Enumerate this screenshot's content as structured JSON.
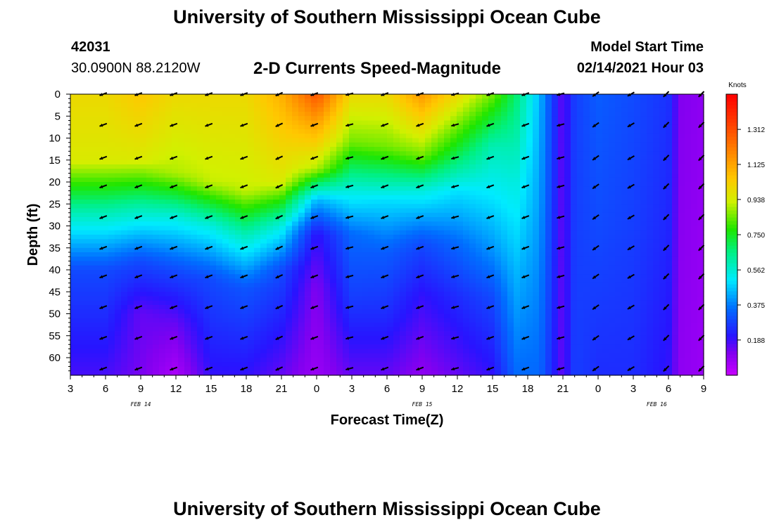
{
  "header": {
    "title": "University of Southern Mississippi Ocean Cube",
    "station_id": "42031",
    "location": "30.0900N 88.2120W",
    "plot_title": "2-D Currents Speed-Magnitude",
    "model_label": "Model Start Time",
    "model_time": "02/14/2021 Hour 03"
  },
  "footer": {
    "title": "University of Southern Mississippi Ocean Cube"
  },
  "chart_data": {
    "type": "heatmap",
    "title": "2-D Currents Speed-Magnitude",
    "xlabel": "Forecast Time(Z)",
    "ylabel": "Depth (ft)",
    "x_tick_labels": [
      "3",
      "6",
      "9",
      "12",
      "15",
      "18",
      "21",
      "0",
      "3",
      "6",
      "9",
      "12",
      "15",
      "18",
      "21",
      "0",
      "3",
      "6",
      "9"
    ],
    "x_hours_from_start": [
      0,
      3,
      6,
      9,
      12,
      15,
      18,
      21,
      24,
      27,
      30,
      33,
      36,
      39,
      42,
      45,
      48,
      51,
      54
    ],
    "date_labels": [
      {
        "label": "FEB 14",
        "hour": 6
      },
      {
        "label": "FEB 15",
        "hour": 30
      },
      {
        "label": "FEB 16",
        "hour": 50
      }
    ],
    "y_ticks": [
      0,
      5,
      10,
      15,
      20,
      25,
      30,
      35,
      40,
      45,
      50,
      55,
      60
    ],
    "ylim": [
      0,
      64
    ],
    "colorbar": {
      "unit": "Knots",
      "min": 0.0,
      "max": 1.5,
      "ticks": [
        "0.188",
        "0.375",
        "0.562",
        "0.750",
        "0.938",
        "1.125",
        "1.312"
      ]
    },
    "speed_profiles": [
      {
        "hour": 0,
        "d": [
          0,
          15,
          27,
          40,
          64
        ],
        "v": [
          1.0,
          0.95,
          0.6,
          0.3,
          0.18
        ]
      },
      {
        "hour": 3,
        "d": [
          0,
          15,
          27,
          40,
          64
        ],
        "v": [
          1.0,
          0.95,
          0.6,
          0.3,
          0.18
        ]
      },
      {
        "hour": 6,
        "d": [
          0,
          15,
          26,
          38,
          50,
          64
        ],
        "v": [
          1.05,
          0.95,
          0.6,
          0.3,
          0.15,
          0.13
        ]
      },
      {
        "hour": 9,
        "d": [
          0,
          18,
          28,
          40,
          52,
          64
        ],
        "v": [
          1.0,
          0.9,
          0.55,
          0.3,
          0.15,
          0.05
        ]
      },
      {
        "hour": 12,
        "d": [
          0,
          20,
          30,
          42,
          64
        ],
        "v": [
          1.0,
          0.92,
          0.55,
          0.3,
          0.2
        ]
      },
      {
        "hour": 15,
        "d": [
          0,
          22,
          32,
          44,
          64
        ],
        "v": [
          1.0,
          0.92,
          0.6,
          0.32,
          0.2
        ]
      },
      {
        "hour": 18,
        "d": [
          0,
          20,
          30,
          40,
          64
        ],
        "v": [
          1.1,
          0.95,
          0.55,
          0.3,
          0.15
        ]
      },
      {
        "hour": 21,
        "d": [
          0,
          8,
          17,
          24,
          32,
          44,
          64
        ],
        "v": [
          1.3,
          1.1,
          0.9,
          0.45,
          0.2,
          0.12,
          0.08
        ]
      },
      {
        "hour": 24,
        "d": [
          0,
          11,
          22,
          32,
          46,
          64
        ],
        "v": [
          1.0,
          0.85,
          0.55,
          0.35,
          0.28,
          0.15
        ]
      },
      {
        "hour": 27,
        "d": [
          0,
          12,
          24,
          36,
          50,
          64
        ],
        "v": [
          1.0,
          0.85,
          0.5,
          0.33,
          0.25,
          0.15
        ]
      },
      {
        "hour": 30,
        "d": [
          0,
          14,
          22,
          34,
          46,
          64
        ],
        "v": [
          1.15,
          0.85,
          0.55,
          0.3,
          0.2,
          0.1
        ]
      },
      {
        "hour": 33,
        "d": [
          0,
          12,
          22,
          34,
          46,
          64
        ],
        "v": [
          1.0,
          0.75,
          0.5,
          0.35,
          0.25,
          0.15
        ]
      },
      {
        "hour": 36,
        "d": [
          0,
          12,
          24,
          36,
          46,
          64
        ],
        "v": [
          0.85,
          0.6,
          0.5,
          0.4,
          0.3,
          0.2
        ]
      },
      {
        "hour": 38,
        "d": [
          0,
          20,
          40,
          64
        ],
        "v": [
          0.68,
          0.55,
          0.45,
          0.35
        ]
      },
      {
        "hour": 40,
        "d": [
          0,
          25,
          64
        ],
        "v": [
          0.45,
          0.42,
          0.35
        ]
      },
      {
        "hour": 42,
        "d": [
          0,
          64
        ],
        "v": [
          0.15,
          0.15
        ]
      },
      {
        "hour": 43,
        "d": [
          0,
          64
        ],
        "v": [
          0.28,
          0.28
        ]
      },
      {
        "hour": 45,
        "d": [
          0,
          30,
          64
        ],
        "v": [
          0.33,
          0.3,
          0.25
        ]
      },
      {
        "hour": 48,
        "d": [
          0,
          30,
          64
        ],
        "v": [
          0.3,
          0.28,
          0.25
        ]
      },
      {
        "hour": 51,
        "d": [
          0,
          30,
          64
        ],
        "v": [
          0.26,
          0.24,
          0.2
        ]
      },
      {
        "hour": 52,
        "d": [
          0,
          64
        ],
        "v": [
          0.12,
          0.1
        ]
      },
      {
        "hour": 54,
        "d": [
          0,
          64
        ],
        "v": [
          0.1,
          0.08
        ]
      }
    ],
    "vector_times": [
      2.8,
      5.8,
      8.8,
      11.8,
      14.8,
      17.8,
      20.8,
      23.8,
      26.8,
      29.8,
      32.8,
      35.8,
      38.8,
      41.8,
      44.8,
      47.8,
      50.8,
      53.8
    ],
    "vector_depths": [
      0,
      7,
      14.5,
      21,
      28,
      35,
      41.5,
      48.5,
      55.5,
      62.5
    ],
    "vector_direction_deg": [
      200,
      200,
      200,
      200,
      200,
      205,
      200,
      195,
      200,
      200,
      195,
      200,
      200,
      195,
      215,
      210,
      225,
      225
    ]
  }
}
